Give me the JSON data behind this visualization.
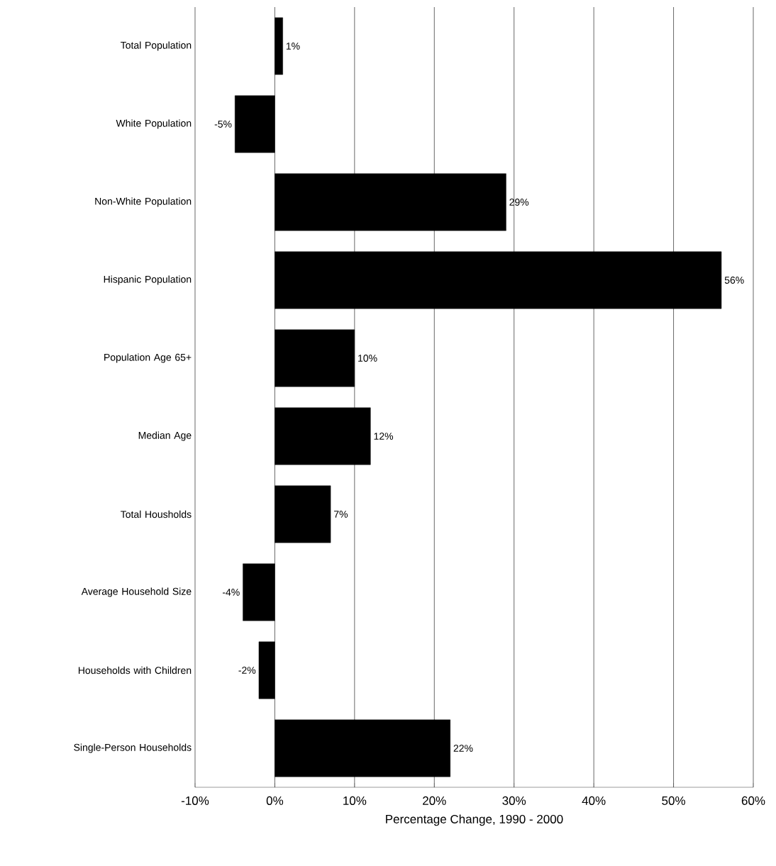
{
  "chart_data": {
    "type": "bar",
    "orientation": "horizontal",
    "xlabel": "Percentage Change, 1990 - 2000",
    "categories": [
      "Total Population",
      "White Population",
      "Non-White Population",
      "Hispanic Population",
      "Population Age 65+",
      "Median Age",
      "Total Housholds",
      "Average Household Size",
      "Households with Children",
      "Single-Person Households"
    ],
    "values": [
      1,
      -5,
      29,
      56,
      10,
      12,
      7,
      -4,
      -2,
      22
    ],
    "value_labels": [
      "1%",
      "-5%",
      "29%",
      "56%",
      "10%",
      "12%",
      "7%",
      "-4%",
      "-2%",
      "22%"
    ],
    "color": "#000000",
    "xlim": [
      -10,
      60
    ],
    "xticks": [
      {
        "value": -10,
        "label": "-10%"
      },
      {
        "value": 0,
        "label": "0%"
      },
      {
        "value": 10,
        "label": "10%"
      },
      {
        "value": 20,
        "label": "20%"
      },
      {
        "value": 30,
        "label": "30%"
      },
      {
        "value": 40,
        "label": "40%"
      },
      {
        "value": 50,
        "label": "50%"
      },
      {
        "value": 60,
        "label": "60%"
      }
    ],
    "grid": "x"
  }
}
